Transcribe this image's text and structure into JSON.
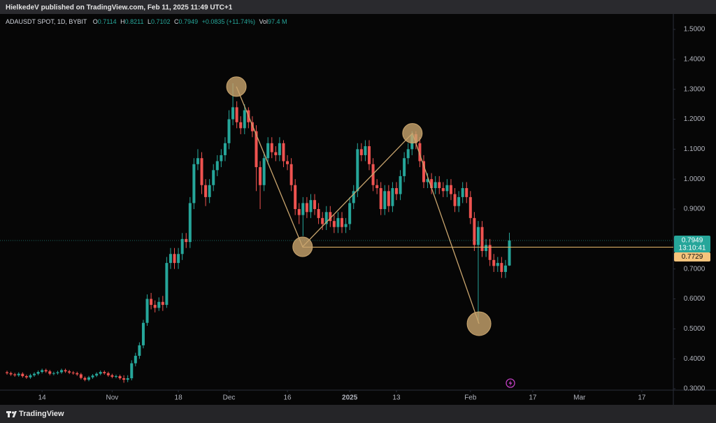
{
  "header": {
    "title": "HielkedeV published on TradingView.com, Feb 11, 2025 11:49 UTC+1"
  },
  "footer": {
    "brand": "TradingView"
  },
  "chart_data": {
    "type": "candlestick",
    "title": "ADAUSDT SPOT, 1D, BYBIT",
    "ohlc_letters": [
      "O",
      "H",
      "L",
      "C"
    ],
    "change": "+0.0835 (+11.74%)",
    "volume_label": "Vol",
    "volume": "97.4 M",
    "up_color": "#26a69a",
    "down_color": "#ef5350",
    "x": [
      0,
      1,
      2,
      3,
      4,
      5,
      6,
      7,
      8,
      9,
      10,
      11,
      12,
      13,
      14,
      15,
      16,
      17,
      18,
      19,
      20,
      21,
      22,
      23,
      24,
      25,
      26,
      27,
      28,
      29,
      30,
      31,
      32,
      33,
      34,
      35,
      36,
      37,
      38,
      39,
      40,
      41,
      42,
      43,
      44,
      45,
      46,
      47,
      48,
      49,
      50,
      51,
      52,
      53,
      54,
      55,
      56,
      57,
      58,
      59,
      60,
      61,
      62,
      63,
      64,
      65,
      66,
      67,
      68,
      69,
      70,
      71,
      72,
      73,
      74,
      75,
      76,
      77,
      78,
      79,
      80,
      81,
      82,
      83,
      84,
      85,
      86,
      87,
      88,
      89,
      90,
      91,
      92,
      93,
      94,
      95,
      96,
      97,
      98,
      99,
      100,
      101,
      102,
      103,
      104,
      105,
      106,
      107,
      108,
      109,
      110,
      111,
      112,
      113,
      114,
      115,
      116,
      117,
      118,
      119,
      120,
      121,
      122,
      123,
      124,
      125,
      126,
      127,
      128,
      129
    ],
    "open": [
      0.355,
      0.352,
      0.348,
      0.345,
      0.35,
      0.342,
      0.338,
      0.345,
      0.35,
      0.356,
      0.362,
      0.358,
      0.35,
      0.352,
      0.355,
      0.362,
      0.358,
      0.354,
      0.352,
      0.348,
      0.336,
      0.33,
      0.338,
      0.344,
      0.35,
      0.356,
      0.352,
      0.345,
      0.34,
      0.342,
      0.335,
      0.33,
      0.335,
      0.385,
      0.41,
      0.445,
      0.52,
      0.6,
      0.58,
      0.57,
      0.59,
      0.58,
      0.72,
      0.75,
      0.72,
      0.75,
      0.8,
      0.79,
      0.92,
      1.05,
      1.07,
      0.98,
      0.94,
      0.98,
      1.03,
      1.06,
      1.08,
      1.12,
      1.2,
      1.24,
      1.19,
      1.17,
      1.23,
      1.19,
      1.16,
      1.04,
      0.98,
      1.07,
      1.12,
      1.09,
      1.08,
      1.12,
      1.06,
      1.05,
      0.98,
      0.9,
      0.88,
      0.92,
      0.89,
      0.93,
      0.9,
      0.87,
      0.85,
      0.89,
      0.86,
      0.84,
      0.87,
      0.84,
      0.85,
      0.92,
      0.96,
      1.1,
      1.08,
      1.11,
      1.05,
      0.98,
      0.97,
      0.9,
      0.96,
      0.91,
      0.97,
      0.95,
      1.01,
      1.07,
      1.1,
      1.15,
      1.12,
      1.06,
      0.99,
      1.0,
      0.97,
      0.99,
      0.97,
      0.96,
      0.98,
      0.95,
      0.91,
      0.94,
      0.97,
      0.94,
      0.87,
      0.78,
      0.84,
      0.76,
      0.78,
      0.73,
      0.71,
      0.72,
      0.69,
      0.7114
    ],
    "high": [
      0.36,
      0.357,
      0.353,
      0.355,
      0.355,
      0.347,
      0.35,
      0.355,
      0.361,
      0.367,
      0.367,
      0.363,
      0.357,
      0.36,
      0.367,
      0.367,
      0.363,
      0.359,
      0.357,
      0.353,
      0.341,
      0.343,
      0.349,
      0.355,
      0.361,
      0.361,
      0.357,
      0.35,
      0.347,
      0.347,
      0.345,
      0.345,
      0.395,
      0.42,
      0.455,
      0.53,
      0.615,
      0.62,
      0.595,
      0.605,
      0.61,
      0.74,
      0.77,
      0.77,
      0.77,
      0.82,
      0.82,
      0.94,
      1.07,
      1.1,
      1.09,
      1.0,
      1.0,
      1.05,
      1.08,
      1.1,
      1.14,
      1.23,
      1.32,
      1.26,
      1.21,
      1.25,
      1.24,
      1.21,
      1.18,
      1.06,
      1.09,
      1.14,
      1.14,
      1.11,
      1.14,
      1.13,
      1.08,
      1.07,
      1.0,
      0.92,
      0.94,
      0.94,
      0.95,
      0.95,
      0.92,
      0.89,
      0.91,
      0.91,
      0.88,
      0.89,
      0.89,
      0.87,
      0.94,
      0.98,
      1.12,
      1.12,
      1.13,
      1.13,
      1.07,
      1.0,
      0.99,
      0.98,
      0.98,
      0.99,
      0.99,
      1.03,
      1.09,
      1.12,
      1.16,
      1.16,
      1.14,
      1.08,
      1.02,
      1.02,
      1.01,
      1.01,
      0.99,
      1.0,
      1.0,
      0.97,
      0.96,
      0.99,
      0.99,
      0.96,
      0.89,
      0.86,
      0.86,
      0.8,
      0.8,
      0.75,
      0.74,
      0.74,
      0.73,
      0.8211
    ],
    "low": [
      0.347,
      0.343,
      0.34,
      0.34,
      0.337,
      0.333,
      0.333,
      0.34,
      0.345,
      0.351,
      0.353,
      0.345,
      0.345,
      0.347,
      0.35,
      0.353,
      0.349,
      0.347,
      0.343,
      0.331,
      0.325,
      0.325,
      0.333,
      0.339,
      0.345,
      0.347,
      0.34,
      0.335,
      0.335,
      0.33,
      0.32,
      0.322,
      0.328,
      0.375,
      0.4,
      0.435,
      0.51,
      0.565,
      0.555,
      0.56,
      0.56,
      0.57,
      0.7,
      0.7,
      0.7,
      0.73,
      0.77,
      0.77,
      0.9,
      1.03,
      0.95,
      0.91,
      0.92,
      0.96,
      1.01,
      1.04,
      1.06,
      1.1,
      1.18,
      1.17,
      1.15,
      1.15,
      1.17,
      1.14,
      0.96,
      0.9,
      0.96,
      1.05,
      1.07,
      1.06,
      1.06,
      1.04,
      1.03,
      0.96,
      0.88,
      0.85,
      0.81,
      0.87,
      0.87,
      0.88,
      0.85,
      0.83,
      0.83,
      0.84,
      0.82,
      0.82,
      0.82,
      0.82,
      0.83,
      0.9,
      0.94,
      1.06,
      1.06,
      1.03,
      0.96,
      0.95,
      0.88,
      0.88,
      0.89,
      0.89,
      0.93,
      0.93,
      0.99,
      1.05,
      1.08,
      1.1,
      1.04,
      0.97,
      0.97,
      0.95,
      0.95,
      0.95,
      0.94,
      0.94,
      0.93,
      0.89,
      0.89,
      0.92,
      0.92,
      0.85,
      0.76,
      0.52,
      0.74,
      0.74,
      0.71,
      0.69,
      0.69,
      0.67,
      0.67,
      0.7102
    ],
    "close": [
      0.352,
      0.348,
      0.345,
      0.35,
      0.342,
      0.338,
      0.345,
      0.35,
      0.356,
      0.362,
      0.358,
      0.35,
      0.352,
      0.355,
      0.362,
      0.358,
      0.354,
      0.352,
      0.348,
      0.336,
      0.33,
      0.338,
      0.344,
      0.35,
      0.356,
      0.352,
      0.345,
      0.34,
      0.342,
      0.335,
      0.33,
      0.335,
      0.385,
      0.41,
      0.445,
      0.52,
      0.6,
      0.58,
      0.57,
      0.59,
      0.58,
      0.72,
      0.75,
      0.72,
      0.75,
      0.8,
      0.79,
      0.92,
      1.05,
      1.07,
      0.98,
      0.94,
      0.98,
      1.03,
      1.06,
      1.08,
      1.12,
      1.2,
      1.24,
      1.19,
      1.17,
      1.23,
      1.19,
      1.16,
      1.04,
      0.98,
      1.07,
      1.12,
      1.09,
      1.08,
      1.12,
      1.06,
      1.05,
      0.98,
      0.9,
      0.88,
      0.92,
      0.89,
      0.93,
      0.9,
      0.87,
      0.85,
      0.89,
      0.86,
      0.84,
      0.87,
      0.84,
      0.85,
      0.92,
      0.96,
      1.1,
      1.08,
      1.11,
      1.05,
      0.98,
      0.97,
      0.9,
      0.96,
      0.91,
      0.97,
      0.95,
      1.01,
      1.07,
      1.1,
      1.15,
      1.12,
      1.06,
      0.99,
      1.0,
      0.97,
      0.99,
      0.97,
      0.96,
      0.98,
      0.95,
      0.91,
      0.94,
      0.97,
      0.94,
      0.87,
      0.78,
      0.84,
      0.76,
      0.78,
      0.73,
      0.71,
      0.72,
      0.69,
      0.7114,
      0.7949
    ],
    "xlim": [
      -1.8,
      171.1
    ],
    "xticks": [
      {
        "value": 9,
        "label": "14"
      },
      {
        "value": 27,
        "label": "Nov"
      },
      {
        "value": 44,
        "label": "18"
      },
      {
        "value": 57,
        "label": "Dec"
      },
      {
        "value": 72,
        "label": "16"
      },
      {
        "value": 88,
        "label": "2025"
      },
      {
        "value": 100,
        "label": "13"
      },
      {
        "value": 119,
        "label": "Feb"
      },
      {
        "value": 135,
        "label": "17"
      },
      {
        "value": 147,
        "label": "Mar"
      },
      {
        "value": 163,
        "label": "17"
      }
    ],
    "ylim": [
      0.2953,
      1.5515
    ],
    "yticks": [
      {
        "value": 0.3,
        "label": "0.3000"
      },
      {
        "value": 0.4,
        "label": "0.4000"
      },
      {
        "value": 0.5,
        "label": "0.5000"
      },
      {
        "value": 0.6,
        "label": "0.6000"
      },
      {
        "value": 0.7,
        "label": "0.7000"
      },
      {
        "value": 0.8,
        "label": "0.8000"
      },
      {
        "value": 0.9,
        "label": "0.9000"
      },
      {
        "value": 1.0,
        "label": "1.0000"
      },
      {
        "value": 1.1,
        "label": "1.1000"
      },
      {
        "value": 1.2,
        "label": "1.2000"
      },
      {
        "value": 1.3,
        "label": "1.3000"
      },
      {
        "value": 1.4,
        "label": "1.4000"
      },
      {
        "value": 1.5,
        "label": "1.5000"
      }
    ],
    "grid": false,
    "last_price_countdown": "13:10:41",
    "level": {
      "value": 0.7729,
      "color": "#e8b96a"
    },
    "pattern": {
      "color": "#c9a56e",
      "points": [
        {
          "x": 58.9,
          "y": 1.309
        },
        {
          "x": 75.9,
          "y": 0.774
        },
        {
          "x": 104.1,
          "y": 1.153
        },
        {
          "x": 121.2,
          "y": 0.517
        }
      ]
    }
  }
}
